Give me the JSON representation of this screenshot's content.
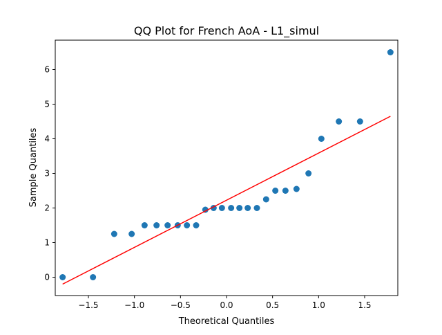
{
  "chart_data": {
    "type": "scatter",
    "title": "QQ Plot for French AoA - L1_simul",
    "xlabel": "Theoretical Quantiles",
    "ylabel": "Sample Quantiles",
    "xlim": [
      -1.86,
      1.86
    ],
    "ylim": [
      -0.53,
      6.85
    ],
    "x_ticks": [
      -1.5,
      -1.0,
      -0.5,
      0.0,
      0.5,
      1.0,
      1.5
    ],
    "x_tick_labels": [
      "−1.5",
      "−1.0",
      "−0.5",
      "0.0",
      "0.5",
      "1.0",
      "1.5"
    ],
    "y_ticks": [
      0,
      1,
      2,
      3,
      4,
      5,
      6
    ],
    "y_tick_labels": [
      "0",
      "1",
      "2",
      "3",
      "4",
      "5",
      "6"
    ],
    "grid": false,
    "colors": {
      "points": "#1f77b4",
      "line": "#ff0000"
    },
    "series": [
      {
        "type": "scatter",
        "x": [
          -1.78,
          -1.45,
          -1.22,
          -1.03,
          -0.89,
          -0.76,
          -0.64,
          -0.53,
          -0.43,
          -0.33,
          -0.23,
          -0.14,
          -0.05,
          0.05,
          0.14,
          0.23,
          0.33,
          0.43,
          0.53,
          0.64,
          0.76,
          0.89,
          1.03,
          1.22,
          1.45,
          1.78
        ],
        "y": [
          0,
          0,
          1.25,
          1.25,
          1.5,
          1.5,
          1.5,
          1.5,
          1.5,
          1.5,
          1.95,
          2.0,
          2.0,
          2.0,
          2.0,
          2.0,
          2.0,
          2.25,
          2.5,
          2.5,
          2.55,
          3.0,
          4.0,
          4.5,
          4.5,
          6.5
        ]
      },
      {
        "type": "line",
        "x": [
          -1.78,
          1.78
        ],
        "y": [
          -0.2,
          4.65
        ]
      }
    ]
  }
}
